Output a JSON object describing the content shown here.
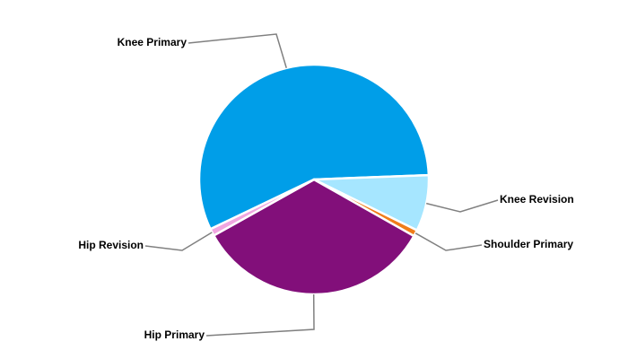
{
  "chart_data": {
    "type": "pie",
    "categories": [
      "Knee Primary",
      "Knee Revision",
      "Shoulder Primary",
      "Hip Primary",
      "Hip Revision"
    ],
    "values": [
      56.5,
      7.9,
      0.9,
      33.7,
      1.0
    ],
    "colors": [
      "#009ee8",
      "#a6e6ff",
      "#f07d1a",
      "#820f7a",
      "#f0a6e0"
    ]
  }
}
